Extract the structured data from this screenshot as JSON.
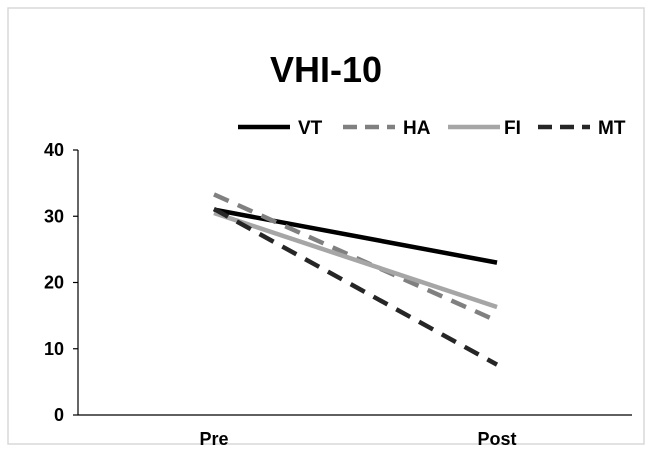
{
  "chart_data": {
    "type": "line",
    "title": "VHI-10",
    "categories": [
      "Pre",
      "Post"
    ],
    "ylim": [
      0,
      40
    ],
    "yticks": [
      0,
      10,
      20,
      30,
      40
    ],
    "grid": false,
    "legend_position": "top",
    "series": [
      {
        "name": "VT",
        "values": [
          31,
          23
        ],
        "color": "#000000",
        "style": "solid"
      },
      {
        "name": "HA",
        "values": [
          33.3,
          14.2
        ],
        "color": "#808080",
        "style": "dashed"
      },
      {
        "name": "FI",
        "values": [
          30.5,
          16.3
        ],
        "color": "#a6a6a6",
        "style": "solid"
      },
      {
        "name": "MT",
        "values": [
          31.1,
          7.6
        ],
        "color": "#262626",
        "style": "dashed"
      }
    ]
  }
}
